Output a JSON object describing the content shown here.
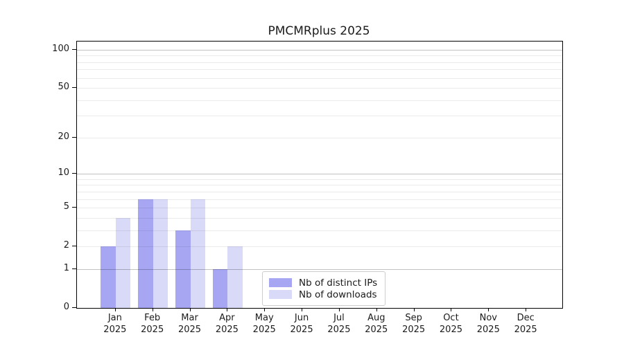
{
  "chart_data": {
    "type": "bar",
    "title": "PMCMRplus 2025",
    "year": "2025",
    "categories": [
      "Jan",
      "Feb",
      "Mar",
      "Apr",
      "May",
      "Jun",
      "Jul",
      "Aug",
      "Sep",
      "Oct",
      "Nov",
      "Dec"
    ],
    "series": [
      {
        "name": "Nb of distinct IPs",
        "color": "#a6a6f2",
        "values": [
          2,
          6,
          3,
          1,
          0,
          0,
          0,
          0,
          0,
          0,
          0,
          0
        ]
      },
      {
        "name": "Nb of downloads",
        "color": "#d9d9f8",
        "values": [
          4,
          6,
          6,
          2,
          0,
          0,
          0,
          0,
          0,
          0,
          0,
          0
        ]
      }
    ],
    "yscale": "log1p",
    "ylim": [
      0,
      117
    ],
    "ytick_values": [
      100,
      50,
      20,
      10,
      5,
      2,
      1,
      0
    ],
    "major_gridlines": [
      1,
      10,
      100
    ],
    "minor_gridlines": [
      2,
      3,
      4,
      5,
      6,
      7,
      8,
      9,
      20,
      30,
      40,
      50,
      60,
      70,
      80,
      90
    ],
    "legend": {
      "position": "inside-bottom-center"
    },
    "xlabel": "",
    "ylabel": ""
  },
  "colors": {
    "background": "#ffffff",
    "axis": "#000000",
    "major_gridline": "#c6c6c6",
    "minor_gridline": "#ebebeb",
    "ips_bar": "#a6a6f2",
    "downloads_bar": "#d9d9f8"
  }
}
